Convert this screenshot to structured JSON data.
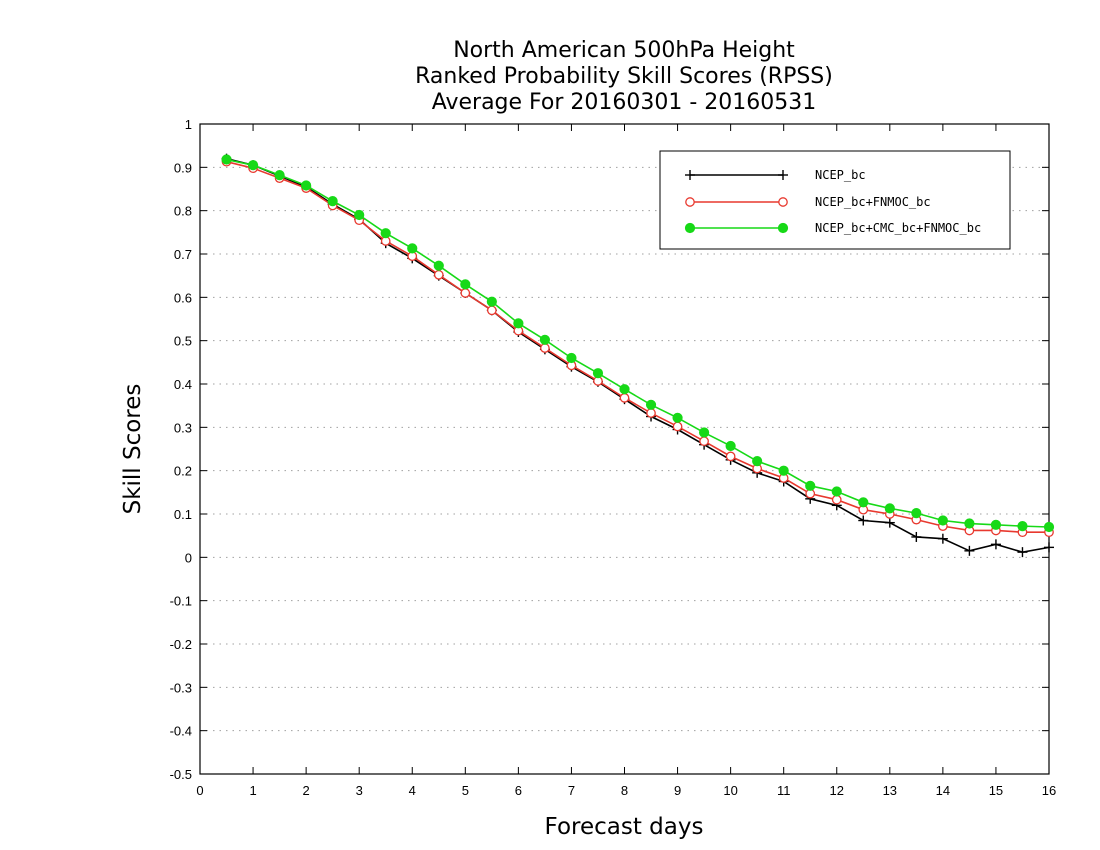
{
  "chart_data": {
    "type": "line",
    "title": [
      "North American 500hPa Height",
      "Ranked Probability Skill Scores (RPSS)",
      "Average For 20160301 - 20160531"
    ],
    "xlabel": "Forecast days",
    "ylabel": "Skill Scores",
    "xlim": [
      0,
      16
    ],
    "ylim": [
      -0.5,
      1
    ],
    "xticks": [
      "0",
      "1",
      "2",
      "3",
      "4",
      "5",
      "6",
      "7",
      "8",
      "9",
      "10",
      "11",
      "12",
      "13",
      "14",
      "15",
      "16"
    ],
    "yticks": [
      "1",
      "0.9",
      "0.8",
      "0.7",
      "0.6",
      "0.5",
      "0.4",
      "0.3",
      "0.2",
      "0.1",
      "0",
      "-0.1",
      "-0.2",
      "-0.3",
      "-0.4",
      "-0.5"
    ],
    "grid": true,
    "legend_position": "top-right",
    "x": [
      0.5,
      1,
      1.5,
      2,
      2.5,
      3,
      3.5,
      4,
      4.5,
      5,
      5.5,
      6,
      6.5,
      7,
      7.5,
      8,
      8.5,
      9,
      9.5,
      10,
      10.5,
      11,
      11.5,
      12,
      12.5,
      13,
      13.5,
      14,
      14.5,
      15,
      15.5,
      16
    ],
    "series": [
      {
        "name": "NCEP_bc",
        "color": "#000000",
        "marker": "plus",
        "values": [
          0.92,
          0.905,
          0.88,
          0.855,
          0.815,
          0.78,
          0.725,
          0.69,
          0.65,
          0.61,
          0.57,
          0.52,
          0.48,
          0.44,
          0.405,
          0.365,
          0.325,
          0.295,
          0.26,
          0.225,
          0.195,
          0.175,
          0.135,
          0.12,
          0.085,
          0.08,
          0.047,
          0.043,
          0.015,
          0.03,
          0.012,
          0.023
        ]
      },
      {
        "name": "NCEP_bc+FNMOC_bc",
        "color": "#e8392f",
        "marker": "open-circle",
        "values": [
          0.913,
          0.898,
          0.875,
          0.852,
          0.812,
          0.778,
          0.73,
          0.695,
          0.652,
          0.61,
          0.57,
          0.523,
          0.483,
          0.443,
          0.407,
          0.368,
          0.333,
          0.302,
          0.268,
          0.233,
          0.205,
          0.183,
          0.147,
          0.133,
          0.11,
          0.1,
          0.087,
          0.072,
          0.062,
          0.062,
          0.058,
          0.058
        ]
      },
      {
        "name": "NCEP_bc+CMC_bc+FNMOC_bc",
        "color": "#17d917",
        "marker": "filled-circle",
        "values": [
          0.918,
          0.905,
          0.882,
          0.858,
          0.822,
          0.79,
          0.748,
          0.713,
          0.673,
          0.63,
          0.59,
          0.54,
          0.502,
          0.46,
          0.425,
          0.388,
          0.352,
          0.322,
          0.288,
          0.257,
          0.222,
          0.2,
          0.165,
          0.152,
          0.127,
          0.113,
          0.102,
          0.085,
          0.078,
          0.075,
          0.072,
          0.07
        ]
      }
    ]
  }
}
